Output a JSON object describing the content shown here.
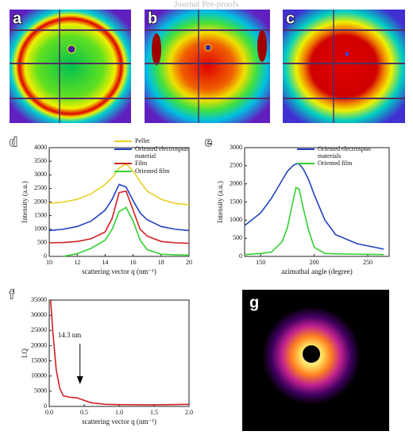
{
  "header": "Journal Pre-proofs",
  "panel_labels": [
    "a",
    "b",
    "c",
    "g"
  ],
  "chart_data": [
    {
      "type": "line",
      "panel_label": "d",
      "x_label": "scattering vector q (nm⁻¹)",
      "y_label": "Intensity (a.u.)",
      "xlim": [
        10,
        20
      ],
      "xticks": [
        10,
        12,
        14,
        16,
        18,
        20
      ],
      "ylim": [
        0,
        4000
      ],
      "yticks": [
        0,
        500,
        1000,
        1500,
        2000,
        2500,
        3000,
        3500,
        4000
      ],
      "x": [
        10,
        11,
        12,
        13,
        14,
        14.5,
        15,
        15.5,
        16,
        16.5,
        17,
        18,
        19,
        20
      ],
      "series": [
        {
          "name": "Pellet",
          "color": "#e8d020",
          "values": [
            1950,
            2000,
            2100,
            2300,
            2650,
            2900,
            3250,
            3400,
            3150,
            2750,
            2400,
            2100,
            1950,
            1900
          ]
        },
        {
          "name": "Oriented electrospun material",
          "color": "#2040c0",
          "values": [
            950,
            1000,
            1100,
            1300,
            1700,
            2100,
            2650,
            2550,
            2050,
            1600,
            1350,
            1100,
            1000,
            950
          ]
        },
        {
          "name": "Film",
          "color": "#d02020",
          "values": [
            500,
            510,
            550,
            650,
            900,
            1400,
            2350,
            2400,
            1700,
            1000,
            750,
            550,
            500,
            480
          ]
        },
        {
          "name": "Oriented film",
          "color": "#30d030",
          "values": [
            null,
            0,
            100,
            300,
            600,
            1000,
            1650,
            1800,
            1300,
            600,
            250,
            80,
            60,
            50
          ]
        }
      ]
    },
    {
      "type": "line",
      "panel_label": "e",
      "x_label": "azimuthal angle (degree)",
      "y_label": "Intensity (a.u.)",
      "xlim": [
        135,
        270
      ],
      "xticks": [
        150,
        200,
        250
      ],
      "ylim": [
        0,
        3000
      ],
      "yticks": [
        0,
        500,
        1000,
        1500,
        2000,
        2500,
        3000
      ],
      "x": [
        135,
        150,
        160,
        170,
        175,
        180,
        183,
        186,
        190,
        195,
        200,
        210,
        220,
        240,
        265
      ],
      "series": [
        {
          "name": "Oriented electrospun materials",
          "color": "#2040c0",
          "values": [
            850,
            1200,
            1600,
            2100,
            2350,
            2500,
            2550,
            2550,
            2400,
            2100,
            1700,
            1000,
            600,
            350,
            200
          ]
        },
        {
          "name": "Oriented film",
          "color": "#30d030",
          "values": [
            50,
            80,
            120,
            400,
            800,
            1500,
            1900,
            1850,
            1300,
            700,
            250,
            80,
            70,
            60,
            50
          ]
        }
      ]
    },
    {
      "type": "line",
      "panel_label": "f",
      "x_label": "scattering vector q (nm⁻¹)",
      "y_label": "I.Q",
      "annotation": "14.3 nm",
      "annotation_x": 0.44,
      "xlim": [
        0,
        2
      ],
      "xticks": [
        {
          "value": 0,
          "label": "0.0"
        },
        {
          "value": 0.5,
          "label": "0.5"
        },
        {
          "value": 1,
          "label": "1.0"
        },
        {
          "value": 1.5,
          "label": "1.5"
        },
        {
          "value": 2,
          "label": "2.0"
        }
      ],
      "ylim": [
        0,
        35000
      ],
      "yticks": [
        0,
        5000,
        10000,
        15000,
        20000,
        25000,
        30000,
        35000
      ],
      "x": [
        0.02,
        0.05,
        0.1,
        0.15,
        0.2,
        0.3,
        0.4,
        0.5,
        0.6,
        0.8,
        1.0,
        1.5,
        2.0
      ],
      "series": [
        {
          "color": "#d02020",
          "values": [
            35000,
            25000,
            12000,
            6000,
            3500,
            3000,
            2800,
            2000,
            1200,
            700,
            600,
            500,
            700
          ]
        }
      ]
    }
  ]
}
